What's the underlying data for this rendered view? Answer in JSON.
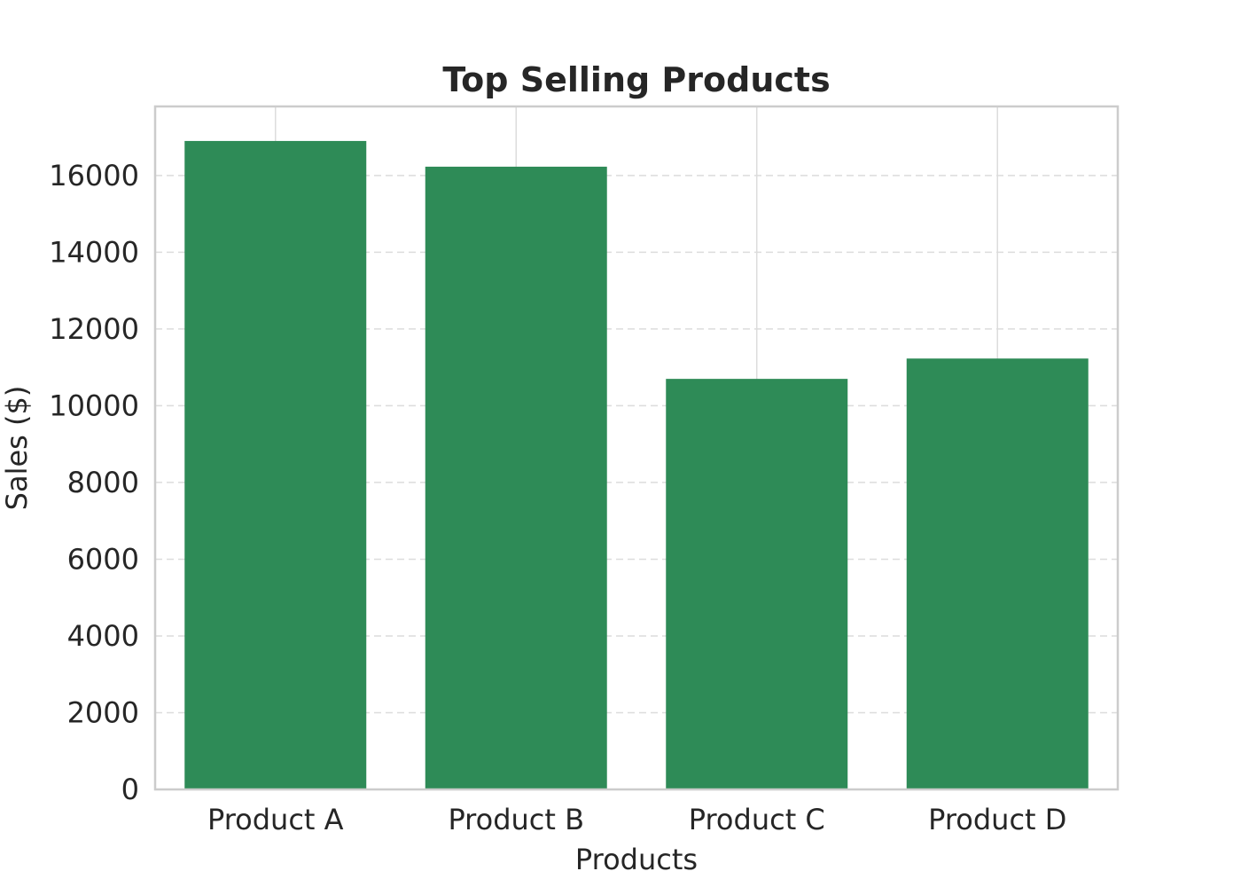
{
  "chart_data": {
    "type": "bar",
    "title": "Top Selling Products",
    "xlabel": "Products",
    "ylabel": "Sales ($)",
    "categories": [
      "Product A",
      "Product B",
      "Product C",
      "Product D"
    ],
    "values": [
      16900,
      16230,
      10700,
      11230
    ],
    "ylim": [
      0,
      17800
    ],
    "yticks": [
      0,
      2000,
      4000,
      6000,
      8000,
      10000,
      12000,
      14000,
      16000
    ],
    "grid": true,
    "colors": {
      "bar": "#2e8b57",
      "grid": "#dcdcdc",
      "frame": "#cccccc",
      "text": "#262626"
    }
  }
}
